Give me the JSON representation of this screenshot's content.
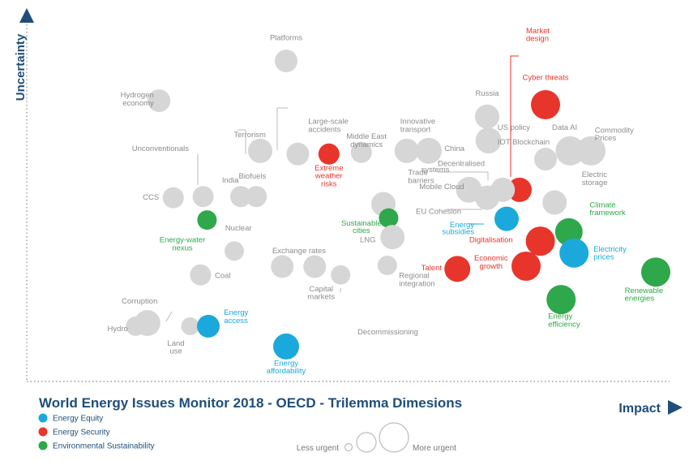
{
  "chart_data": {
    "type": "scatter",
    "title": "World Energy Issues Monitor 2018 - OECD - Trilemma Dimesions",
    "xlabel": "Impact",
    "ylabel": "Uncertainty",
    "size_legend": {
      "less": "Less urgent",
      "more": "More urgent"
    },
    "series": [
      {
        "name": "Energy Equity",
        "color": "#1ba9db"
      },
      {
        "name": "Energy Security",
        "color": "#e8352b"
      },
      {
        "name": "Environmental Sustainability",
        "color": "#2ea84a"
      }
    ],
    "neutral_color": "#d6d6d6",
    "points": [
      {
        "label": "Platforms",
        "x": 2.0,
        "y": 8.1,
        "r": 14,
        "group": "neutral"
      },
      {
        "label": "Hydrogen economy",
        "x": 1.02,
        "y": 7.1,
        "r": 14,
        "group": "neutral"
      },
      {
        "label": "Terrorism",
        "x": 1.8,
        "y": 5.84,
        "r": 15,
        "group": "neutral"
      },
      {
        "label": "Large-scale accidents",
        "x": 2.09,
        "y": 5.76,
        "r": 14,
        "group": "neutral"
      },
      {
        "label": "Extreme weather risks",
        "x": 2.33,
        "y": 5.76,
        "r": 13,
        "group": "security"
      },
      {
        "label": "Middle East dynamics",
        "x": 2.58,
        "y": 5.8,
        "r": 13,
        "group": "neutral"
      },
      {
        "label": "Unconventionals",
        "x": 1.2,
        "y": 5.0,
        "r": 0,
        "group": "neutral"
      },
      {
        "label": "CCS",
        "x": 1.13,
        "y": 4.66,
        "r": 13,
        "group": "neutral"
      },
      {
        "label": "Unconventionals",
        "x": 1.36,
        "y": 4.69,
        "r": 13,
        "group": "neutral"
      },
      {
        "label": "India",
        "x": 1.65,
        "y": 4.69,
        "r": 13,
        "group": "neutral"
      },
      {
        "label": "Biofuels",
        "x": 1.77,
        "y": 4.69,
        "r": 13,
        "group": "neutral"
      },
      {
        "label": "Energy-water nexus",
        "x": 1.39,
        "y": 4.1,
        "r": 12,
        "group": "environment"
      },
      {
        "label": "Nuclear",
        "x": 1.6,
        "y": 3.32,
        "r": 12,
        "group": "neutral"
      },
      {
        "label": "Trade barriers",
        "x": 2.75,
        "y": 4.5,
        "r": 15,
        "group": "neutral"
      },
      {
        "label": "Sustainable cities",
        "x": 2.79,
        "y": 4.15,
        "r": 12,
        "group": "environment"
      },
      {
        "label": "LNG",
        "x": 2.82,
        "y": 3.67,
        "r": 15,
        "group": "neutral"
      },
      {
        "label": "Exchange rates",
        "x": 1.97,
        "y": 2.93,
        "r": 14,
        "group": "neutral"
      },
      {
        "label": "Capital markets",
        "x": 2.22,
        "y": 2.93,
        "r": 14,
        "group": "neutral"
      },
      {
        "label": "Capital markets",
        "x": 2.42,
        "y": 2.72,
        "r": 12,
        "group": "neutral"
      },
      {
        "label": "Regional integration",
        "x": 2.78,
        "y": 2.96,
        "r": 12,
        "group": "neutral"
      },
      {
        "label": "Coal",
        "x": 1.34,
        "y": 2.72,
        "r": 13,
        "group": "neutral"
      },
      {
        "label": "Corruption",
        "x": 0.93,
        "y": 1.51,
        "r": 16,
        "group": "neutral"
      },
      {
        "label": "Hydro",
        "x": 0.84,
        "y": 1.43,
        "r": 12,
        "group": "neutral"
      },
      {
        "label": "Land use",
        "x": 1.26,
        "y": 1.43,
        "r": 11,
        "group": "neutral"
      },
      {
        "label": "Energy access",
        "x": 1.4,
        "y": 1.43,
        "r": 14,
        "group": "equity"
      },
      {
        "label": "Energy affordability",
        "x": 2.0,
        "y": 0.92,
        "r": 16,
        "group": "equity"
      },
      {
        "label": "Decommissioning",
        "x": 2.66,
        "y": 0.92,
        "r": 0,
        "group": "neutral"
      },
      {
        "label": "Russia",
        "x": 3.55,
        "y": 6.7,
        "r": 15,
        "group": "neutral"
      },
      {
        "label": "US policy",
        "x": 3.56,
        "y": 6.1,
        "r": 16,
        "group": "neutral"
      },
      {
        "label": "Innovative transport",
        "x": 2.93,
        "y": 5.84,
        "r": 15,
        "group": "neutral"
      },
      {
        "label": "China",
        "x": 3.1,
        "y": 5.84,
        "r": 16,
        "group": "neutral"
      },
      {
        "label": "Data AI",
        "x": 4.19,
        "y": 5.84,
        "r": 18,
        "group": "neutral"
      },
      {
        "label": "Commodity Prices",
        "x": 4.35,
        "y": 5.84,
        "r": 18,
        "group": "neutral"
      },
      {
        "label": "IOT Blockchain",
        "x": 4.0,
        "y": 5.63,
        "r": 14,
        "group": "neutral"
      },
      {
        "label": "Market design",
        "x": 3.8,
        "y": 4.86,
        "r": 15,
        "group": "security"
      },
      {
        "label": "Cyber threats",
        "x": 4.0,
        "y": 7.0,
        "r": 18,
        "group": "security"
      },
      {
        "label": "Decentralised systems",
        "x": 3.67,
        "y": 4.86,
        "r": 15,
        "group": "neutral"
      },
      {
        "label": "Mobile Cloud",
        "x": 3.41,
        "y": 4.86,
        "r": 16,
        "group": "neutral"
      },
      {
        "label": "Decentralised systems",
        "x": 3.55,
        "y": 4.66,
        "r": 15,
        "group": "neutral"
      },
      {
        "label": "Electric storage",
        "x": 4.07,
        "y": 4.54,
        "r": 15,
        "group": "neutral"
      },
      {
        "label": "Energy subsidies",
        "x": 3.7,
        "y": 4.13,
        "r": 15,
        "group": "equity"
      },
      {
        "label": "Climate framework",
        "x": 4.18,
        "y": 3.8,
        "r": 17,
        "group": "environment"
      },
      {
        "label": "Digitalisation",
        "x": 3.96,
        "y": 3.57,
        "r": 18,
        "group": "security"
      },
      {
        "label": "Electricity prices",
        "x": 4.22,
        "y": 3.27,
        "r": 18,
        "group": "equity"
      },
      {
        "label": "Economic growth",
        "x": 3.85,
        "y": 2.94,
        "r": 18,
        "group": "security"
      },
      {
        "label": "Talent",
        "x": 3.32,
        "y": 2.87,
        "r": 16,
        "group": "security"
      },
      {
        "label": "Renewable energies",
        "x": 4.85,
        "y": 2.79,
        "r": 18,
        "group": "environment"
      },
      {
        "label": "Energy efficiency",
        "x": 4.12,
        "y": 2.1,
        "r": 18,
        "group": "environment"
      }
    ],
    "labels": [
      {
        "text": "Platforms",
        "x": 2.0,
        "y": 8.62,
        "group": "neutral",
        "anchor": "middle"
      },
      {
        "text": "Hydrogen",
        "x": 0.98,
        "y": 7.18,
        "group": "neutral",
        "anchor": "end"
      },
      {
        "text": "economy",
        "x": 0.98,
        "y": 6.98,
        "group": "neutral",
        "anchor": "end"
      },
      {
        "text": "Large-scale",
        "x": 2.17,
        "y": 6.52,
        "group": "neutral",
        "anchor": "start"
      },
      {
        "text": "accidents",
        "x": 2.17,
        "y": 6.32,
        "group": "neutral",
        "anchor": "start"
      },
      {
        "text": "Terrorism",
        "x": 1.72,
        "y": 6.18,
        "group": "neutral",
        "anchor": "middle"
      },
      {
        "text": "Middle East",
        "x": 2.62,
        "y": 6.14,
        "group": "neutral",
        "anchor": "middle"
      },
      {
        "text": "dynamics",
        "x": 2.62,
        "y": 5.94,
        "group": "neutral",
        "anchor": "middle"
      },
      {
        "text": "Extreme",
        "x": 2.33,
        "y": 5.35,
        "group": "security",
        "anchor": "middle"
      },
      {
        "text": "weather",
        "x": 2.33,
        "y": 5.15,
        "group": "security",
        "anchor": "middle"
      },
      {
        "text": "risks",
        "x": 2.33,
        "y": 4.95,
        "group": "security",
        "anchor": "middle"
      },
      {
        "text": "Unconventionals",
        "x": 1.25,
        "y": 5.84,
        "group": "neutral",
        "anchor": "end"
      },
      {
        "text": "India",
        "x": 1.57,
        "y": 5.04,
        "group": "neutral",
        "anchor": "middle"
      },
      {
        "text": "Biofuels",
        "x": 1.74,
        "y": 5.14,
        "group": "neutral",
        "anchor": "middle"
      },
      {
        "text": "CCS",
        "x": 1.02,
        "y": 4.61,
        "group": "neutral",
        "anchor": "end"
      },
      {
        "text": "Trade",
        "x": 2.94,
        "y": 5.23,
        "group": "neutral",
        "anchor": "start"
      },
      {
        "text": "barriers",
        "x": 2.94,
        "y": 5.03,
        "group": "neutral",
        "anchor": "start"
      },
      {
        "text": "Sustainable",
        "x": 2.58,
        "y": 3.96,
        "group": "environment",
        "anchor": "middle"
      },
      {
        "text": "cities",
        "x": 2.58,
        "y": 3.78,
        "group": "environment",
        "anchor": "middle"
      },
      {
        "text": "Nuclear",
        "x": 1.53,
        "y": 3.84,
        "group": "neutral",
        "anchor": "start"
      },
      {
        "text": "Energy-water",
        "x": 1.2,
        "y": 3.54,
        "group": "environment",
        "anchor": "middle"
      },
      {
        "text": "nexus",
        "x": 1.2,
        "y": 3.34,
        "group": "environment",
        "anchor": "middle"
      },
      {
        "text": "LNG",
        "x": 2.63,
        "y": 3.54,
        "group": "neutral",
        "anchor": "middle"
      },
      {
        "text": "Exchange rates",
        "x": 2.1,
        "y": 3.27,
        "group": "neutral",
        "anchor": "middle"
      },
      {
        "text": "Coal",
        "x": 1.45,
        "y": 2.64,
        "group": "neutral",
        "anchor": "start"
      },
      {
        "text": "Regional",
        "x": 2.87,
        "y": 2.64,
        "group": "neutral",
        "anchor": "start"
      },
      {
        "text": "integration",
        "x": 2.87,
        "y": 2.44,
        "group": "neutral",
        "anchor": "start"
      },
      {
        "text": "Capital",
        "x": 2.27,
        "y": 2.31,
        "group": "neutral",
        "anchor": "middle"
      },
      {
        "text": "markets",
        "x": 2.27,
        "y": 2.11,
        "group": "neutral",
        "anchor": "middle"
      },
      {
        "text": "Corruption",
        "x": 0.87,
        "y": 2.0,
        "group": "neutral",
        "anchor": "middle"
      },
      {
        "text": "Energy",
        "x": 1.52,
        "y": 1.71,
        "group": "equity",
        "anchor": "start"
      },
      {
        "text": "access",
        "x": 1.52,
        "y": 1.51,
        "group": "equity",
        "anchor": "start"
      },
      {
        "text": "Hydro",
        "x": 0.78,
        "y": 1.31,
        "group": "neutral",
        "anchor": "end"
      },
      {
        "text": "Land",
        "x": 1.15,
        "y": 0.94,
        "group": "neutral",
        "anchor": "middle"
      },
      {
        "text": "use",
        "x": 1.15,
        "y": 0.74,
        "group": "neutral",
        "anchor": "middle"
      },
      {
        "text": "Decommissioning",
        "x": 2.55,
        "y": 1.22,
        "group": "neutral",
        "anchor": "start"
      },
      {
        "text": "Energy",
        "x": 2.0,
        "y": 0.44,
        "group": "equity",
        "anchor": "middle"
      },
      {
        "text": "affordability",
        "x": 2.0,
        "y": 0.24,
        "group": "equity",
        "anchor": "middle"
      },
      {
        "text": "Russia",
        "x": 3.55,
        "y": 7.22,
        "group": "neutral",
        "anchor": "middle"
      },
      {
        "text": "Innovative",
        "x": 2.88,
        "y": 6.52,
        "group": "neutral",
        "anchor": "start"
      },
      {
        "text": "transport",
        "x": 2.88,
        "y": 6.32,
        "group": "neutral",
        "anchor": "start"
      },
      {
        "text": "China",
        "x": 3.22,
        "y": 5.84,
        "group": "neutral",
        "anchor": "start"
      },
      {
        "text": "US policy",
        "x": 3.63,
        "y": 6.37,
        "group": "neutral",
        "anchor": "start"
      },
      {
        "text": "IOT Blockchain",
        "x": 3.63,
        "y": 6.0,
        "group": "neutral",
        "anchor": "start"
      },
      {
        "text": "Data AI",
        "x": 4.05,
        "y": 6.37,
        "group": "neutral",
        "anchor": "start"
      },
      {
        "text": "Commodity",
        "x": 4.38,
        "y": 6.3,
        "group": "neutral",
        "anchor": "start"
      },
      {
        "text": "Prices",
        "x": 4.38,
        "y": 6.1,
        "group": "neutral",
        "anchor": "start"
      },
      {
        "text": "Market",
        "x": 3.85,
        "y": 8.8,
        "group": "security",
        "anchor": "start"
      },
      {
        "text": "design",
        "x": 3.85,
        "y": 8.6,
        "group": "security",
        "anchor": "start"
      },
      {
        "text": "Cyber threats",
        "x": 4.0,
        "y": 7.62,
        "group": "security",
        "anchor": "middle"
      },
      {
        "text": "Decentralised",
        "x": 3.35,
        "y": 5.46,
        "group": "neutral",
        "anchor": "middle"
      },
      {
        "text": "systems",
        "x": 3.15,
        "y": 5.31,
        "group": "neutral",
        "anchor": "middle"
      },
      {
        "text": "Mobile Cloud",
        "x": 3.2,
        "y": 4.88,
        "group": "neutral",
        "anchor": "middle"
      },
      {
        "text": "Electric",
        "x": 4.28,
        "y": 5.18,
        "group": "neutral",
        "anchor": "start"
      },
      {
        "text": "storage",
        "x": 4.28,
        "y": 4.98,
        "group": "neutral",
        "anchor": "start"
      },
      {
        "text": "EU Cohesion",
        "x": 3.0,
        "y": 4.26,
        "group": "neutral",
        "anchor": "start"
      },
      {
        "text": "Energy",
        "x": 3.45,
        "y": 3.92,
        "group": "equity",
        "anchor": "end"
      },
      {
        "text": "subsidies",
        "x": 3.45,
        "y": 3.74,
        "group": "equity",
        "anchor": "end"
      },
      {
        "text": "Climate",
        "x": 4.34,
        "y": 4.42,
        "group": "environment",
        "anchor": "start"
      },
      {
        "text": "framework",
        "x": 4.34,
        "y": 4.22,
        "group": "environment",
        "anchor": "start"
      },
      {
        "text": "Digitalisation",
        "x": 3.58,
        "y": 3.54,
        "group": "security",
        "anchor": "middle"
      },
      {
        "text": "Electricity",
        "x": 4.37,
        "y": 3.31,
        "group": "equity",
        "anchor": "start"
      },
      {
        "text": "prices",
        "x": 4.37,
        "y": 3.11,
        "group": "equity",
        "anchor": "start"
      },
      {
        "text": "Economic",
        "x": 3.58,
        "y": 3.08,
        "group": "security",
        "anchor": "middle"
      },
      {
        "text": "growth",
        "x": 3.58,
        "y": 2.88,
        "group": "security",
        "anchor": "middle"
      },
      {
        "text": "Talent",
        "x": 3.2,
        "y": 2.84,
        "group": "security",
        "anchor": "end"
      },
      {
        "text": "Renewable",
        "x": 4.61,
        "y": 2.27,
        "group": "environment",
        "anchor": "start"
      },
      {
        "text": "energies",
        "x": 4.61,
        "y": 2.07,
        "group": "environment",
        "anchor": "start"
      },
      {
        "text": "Energy",
        "x": 4.02,
        "y": 1.62,
        "group": "environment",
        "anchor": "start"
      },
      {
        "text": "efficiency",
        "x": 4.02,
        "y": 1.42,
        "group": "environment",
        "anchor": "start"
      }
    ]
  }
}
